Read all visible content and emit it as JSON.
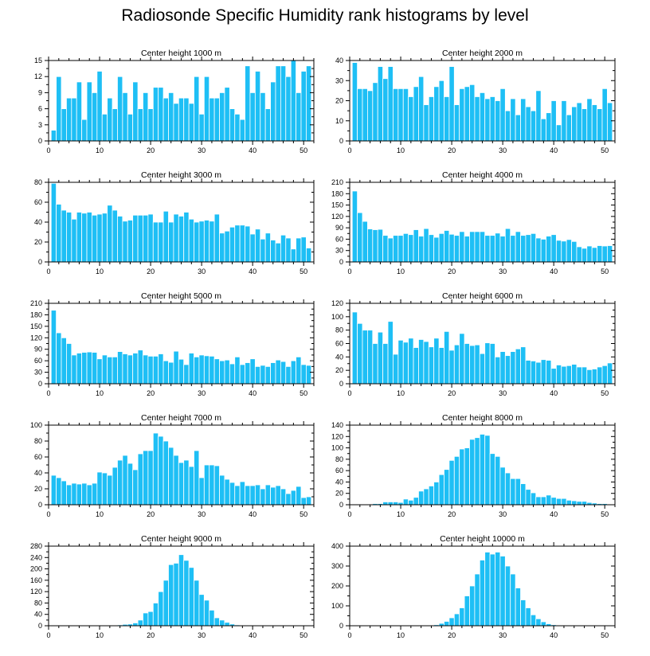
{
  "title": "Radiosonde Specific Humidity rank histograms by level",
  "colors": {
    "bar": "#1EBFF5",
    "bar_edge": "#ffffff",
    "axis": "#000000"
  },
  "chart_data": [
    {
      "type": "bar",
      "title": "Center height 1000 m",
      "xlim": [
        0,
        52
      ],
      "ylim": [
        0,
        15
      ],
      "xticks": [
        0,
        10,
        20,
        30,
        40,
        50
      ],
      "yticks": [
        0,
        3,
        6,
        9,
        12,
        15
      ],
      "values": [
        2,
        12,
        6,
        8,
        8,
        11,
        4,
        11,
        9,
        13,
        5,
        8,
        6,
        12,
        9,
        5,
        11,
        6,
        9,
        6,
        10,
        10,
        8,
        9,
        7,
        8,
        8,
        7,
        12,
        5,
        12,
        8,
        8,
        9,
        10,
        6,
        5,
        4,
        14,
        9,
        13,
        9,
        6,
        11,
        14,
        14,
        12,
        15,
        9,
        13,
        14
      ]
    },
    {
      "type": "bar",
      "title": "Center height 2000 m",
      "xlim": [
        0,
        52
      ],
      "ylim": [
        0,
        40
      ],
      "xticks": [
        0,
        10,
        20,
        30,
        40,
        50
      ],
      "yticks": [
        0,
        10,
        20,
        30,
        40
      ],
      "values": [
        39,
        26,
        26,
        25,
        29,
        37,
        31,
        37,
        26,
        26,
        26,
        22,
        27,
        32,
        18,
        22,
        27,
        30,
        22,
        37,
        18,
        26,
        27,
        28,
        22,
        24,
        21,
        22,
        20,
        26,
        15,
        21,
        13,
        21,
        17,
        15,
        25,
        11,
        14,
        20,
        8,
        20,
        13,
        17,
        19,
        16,
        21,
        18,
        16,
        26,
        19
      ]
    },
    {
      "type": "bar",
      "title": "Center height 3000 m",
      "xlim": [
        0,
        52
      ],
      "ylim": [
        0,
        80
      ],
      "xticks": [
        0,
        10,
        20,
        30,
        40,
        50
      ],
      "yticks": [
        0,
        20,
        40,
        60,
        80
      ],
      "values": [
        79,
        58,
        52,
        50,
        43,
        50,
        49,
        50,
        47,
        48,
        49,
        57,
        52,
        46,
        41,
        42,
        47,
        47,
        47,
        48,
        40,
        40,
        51,
        40,
        48,
        46,
        50,
        43,
        40,
        41,
        42,
        41,
        48,
        29,
        31,
        35,
        37,
        37,
        36,
        28,
        33,
        23,
        29,
        22,
        19,
        27,
        24,
        13,
        24,
        25,
        14
      ]
    },
    {
      "type": "bar",
      "title": "Center height 4000 m",
      "xlim": [
        0,
        52
      ],
      "ylim": [
        0,
        210
      ],
      "xticks": [
        0,
        10,
        20,
        30,
        40,
        50
      ],
      "yticks": [
        0,
        30,
        60,
        90,
        120,
        150,
        180,
        210
      ],
      "values": [
        187,
        130,
        107,
        87,
        85,
        86,
        70,
        63,
        70,
        70,
        75,
        72,
        85,
        68,
        88,
        72,
        65,
        75,
        83,
        73,
        70,
        80,
        68,
        80,
        80,
        80,
        70,
        70,
        76,
        68,
        88,
        70,
        80,
        70,
        72,
        75,
        63,
        60,
        68,
        72,
        57,
        55,
        59,
        54,
        40,
        36,
        42,
        38,
        43,
        42,
        43
      ]
    },
    {
      "type": "bar",
      "title": "Center height 5000 m",
      "xlim": [
        0,
        52
      ],
      "ylim": [
        0,
        210
      ],
      "xticks": [
        0,
        10,
        20,
        30,
        40,
        50
      ],
      "yticks": [
        0,
        30,
        60,
        90,
        120,
        150,
        180,
        210
      ],
      "values": [
        192,
        133,
        120,
        105,
        75,
        80,
        82,
        83,
        82,
        65,
        75,
        70,
        70,
        84,
        78,
        75,
        80,
        88,
        75,
        72,
        72,
        78,
        60,
        56,
        85,
        64,
        50,
        80,
        70,
        75,
        73,
        72,
        65,
        60,
        62,
        52,
        70,
        50,
        55,
        65,
        45,
        48,
        45,
        55,
        62,
        58,
        45,
        60,
        70,
        50,
        48
      ]
    },
    {
      "type": "bar",
      "title": "Center height 6000 m",
      "xlim": [
        0,
        52
      ],
      "ylim": [
        0,
        120
      ],
      "xticks": [
        0,
        10,
        20,
        30,
        40,
        50
      ],
      "yticks": [
        0,
        20,
        40,
        60,
        80,
        100,
        120
      ],
      "values": [
        107,
        90,
        80,
        80,
        60,
        77,
        60,
        93,
        44,
        65,
        62,
        68,
        54,
        66,
        63,
        55,
        68,
        54,
        78,
        50,
        58,
        75,
        60,
        57,
        58,
        45,
        61,
        60,
        40,
        48,
        42,
        48,
        52,
        55,
        35,
        34,
        32,
        36,
        35,
        23,
        28,
        26,
        27,
        29,
        25,
        25,
        21,
        22,
        25,
        27,
        31
      ]
    },
    {
      "type": "bar",
      "title": "Center height 7000 m",
      "xlim": [
        0,
        52
      ],
      "ylim": [
        0,
        100
      ],
      "xticks": [
        0,
        10,
        20,
        30,
        40,
        50
      ],
      "yticks": [
        0,
        20,
        40,
        60,
        80,
        100
      ],
      "values": [
        37,
        34,
        30,
        25,
        27,
        26,
        27,
        25,
        27,
        41,
        40,
        37,
        47,
        56,
        62,
        52,
        44,
        64,
        68,
        68,
        90,
        86,
        80,
        72,
        62,
        53,
        56,
        48,
        68,
        34,
        50,
        50,
        49,
        37,
        32,
        28,
        24,
        29,
        24,
        24,
        25,
        20,
        25,
        22,
        24,
        20,
        14,
        18,
        23,
        9,
        10
      ]
    },
    {
      "type": "bar",
      "title": "Center height 8000 m",
      "xlim": [
        0,
        52
      ],
      "ylim": [
        0,
        140
      ],
      "xticks": [
        0,
        10,
        20,
        30,
        40,
        50
      ],
      "yticks": [
        0,
        20,
        40,
        60,
        80,
        100,
        120,
        140
      ],
      "values": [
        0,
        1,
        1,
        1,
        2,
        2,
        5,
        5,
        5,
        4,
        10,
        8,
        13,
        24,
        28,
        33,
        40,
        53,
        62,
        78,
        85,
        98,
        100,
        115,
        118,
        124,
        122,
        90,
        85,
        66,
        56,
        46,
        46,
        37,
        27,
        21,
        14,
        14,
        17,
        13,
        11,
        11,
        8,
        7,
        6,
        6,
        4,
        3,
        2,
        2,
        1
      ]
    },
    {
      "type": "bar",
      "title": "Center height 9000 m",
      "xlim": [
        0,
        52
      ],
      "ylim": [
        0,
        280
      ],
      "xticks": [
        0,
        10,
        20,
        30,
        40,
        50
      ],
      "yticks": [
        0,
        40,
        80,
        120,
        160,
        200,
        240,
        280
      ],
      "values": [
        0,
        0,
        0,
        0,
        0,
        0,
        0,
        0,
        0,
        0,
        0,
        1,
        2,
        3,
        5,
        6,
        10,
        20,
        45,
        50,
        80,
        120,
        160,
        215,
        220,
        250,
        230,
        205,
        160,
        110,
        90,
        55,
        28,
        20,
        12,
        6,
        3,
        2,
        1,
        1,
        0,
        0,
        0,
        0,
        0,
        0,
        0,
        0,
        0,
        1,
        0
      ]
    },
    {
      "type": "bar",
      "title": "Center height 10000 m",
      "xlim": [
        0,
        52
      ],
      "ylim": [
        0,
        400
      ],
      "xticks": [
        0,
        10,
        20,
        30,
        40,
        50
      ],
      "yticks": [
        0,
        100,
        200,
        300,
        400
      ],
      "values": [
        0,
        0,
        0,
        0,
        0,
        0,
        0,
        0,
        0,
        0,
        0,
        0,
        0,
        1,
        2,
        3,
        5,
        12,
        22,
        40,
        60,
        90,
        150,
        200,
        260,
        330,
        370,
        360,
        370,
        350,
        300,
        260,
        190,
        130,
        90,
        55,
        35,
        20,
        10,
        5,
        2,
        1,
        1,
        0,
        0,
        0,
        0,
        0,
        0,
        0,
        0
      ]
    }
  ]
}
